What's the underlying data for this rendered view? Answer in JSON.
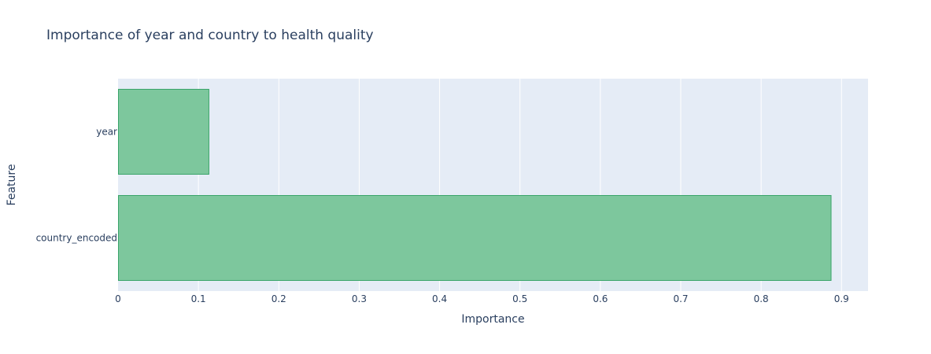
{
  "chart_data": {
    "type": "bar",
    "orientation": "horizontal",
    "title": "Importance of year and country to health quality",
    "xlabel": "Importance",
    "ylabel": "Feature",
    "categories": [
      "year",
      "country_encoded"
    ],
    "values": [
      0.113,
      0.887
    ],
    "xlim": [
      0,
      0.933
    ],
    "xticks": [
      0,
      0.1,
      0.2,
      0.3,
      0.4,
      0.5,
      0.6,
      0.7,
      0.8,
      0.9
    ],
    "xtick_labels": [
      "0",
      "0.1",
      "0.2",
      "0.3",
      "0.4",
      "0.5",
      "0.6",
      "0.7",
      "0.8",
      "0.9"
    ],
    "grid": true,
    "legend": "none",
    "colors": {
      "bar_fill": "#7dc79d",
      "bar_stroke": "#3aa46a",
      "plot_bg": "#e5ecf6",
      "grid": "#ffffff",
      "text": "#2a3f5f"
    }
  }
}
